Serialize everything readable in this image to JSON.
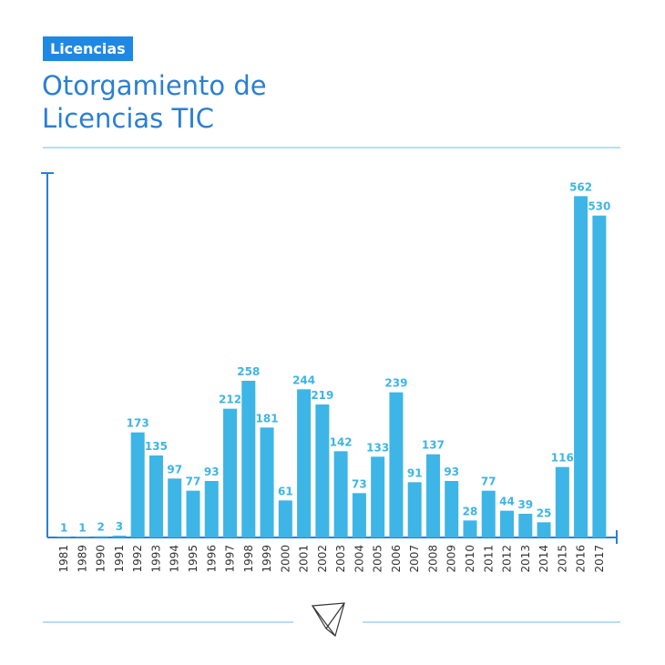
{
  "tag": "Licencias",
  "chart_data": {
    "type": "bar",
    "title": "Otorgamiento de Licencias TIC",
    "categories": [
      "1981",
      "1989",
      "1990",
      "1991",
      "1992",
      "1993",
      "1994",
      "1995",
      "1996",
      "1997",
      "1998",
      "1999",
      "2000",
      "2001",
      "2002",
      "2003",
      "2004",
      "2005",
      "2006",
      "2007",
      "2008",
      "2009",
      "2010",
      "2011",
      "2012",
      "2013",
      "2014",
      "2015",
      "2016",
      "2017"
    ],
    "values": [
      1,
      1,
      2,
      3,
      173,
      135,
      97,
      77,
      93,
      212,
      258,
      181,
      61,
      244,
      219,
      142,
      73,
      133,
      239,
      91,
      137,
      93,
      28,
      77,
      44,
      39,
      25,
      116,
      562,
      530
    ],
    "color": "#3db5e6",
    "ylim": [
      0,
      600
    ]
  }
}
